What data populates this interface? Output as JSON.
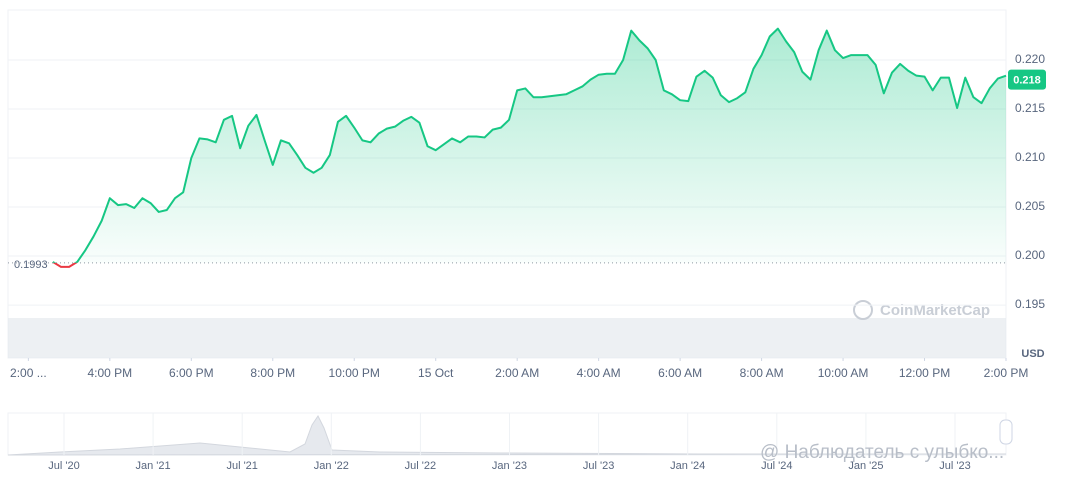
{
  "chart_data": {
    "type": "line",
    "x": [
      0.6,
      0.8,
      1.0,
      1.2,
      1.4,
      1.6,
      1.8,
      2.0,
      2.2,
      2.4,
      2.6,
      2.8,
      3.0,
      3.2,
      3.4,
      3.6,
      3.8,
      4.0,
      4.2,
      4.4,
      4.6,
      4.8,
      5.0,
      5.2,
      5.4,
      5.6,
      5.8,
      6.0,
      6.2,
      6.4,
      6.6,
      6.8,
      7.0,
      7.2,
      7.4,
      7.6,
      7.8,
      8.0,
      8.2,
      8.4,
      8.6,
      8.8,
      9.0,
      9.2,
      9.4,
      9.6,
      9.8,
      10.0,
      10.2,
      10.4,
      10.6,
      10.8,
      11.0,
      11.2,
      11.4,
      11.6,
      11.8,
      12.0,
      12.2,
      12.4,
      12.6,
      12.8,
      13.0,
      13.2,
      13.4,
      13.6,
      13.8,
      14.0,
      14.2,
      14.4,
      14.6,
      14.8,
      15.0,
      15.2,
      15.4,
      15.6,
      15.8,
      16.0,
      16.2,
      16.4,
      16.6,
      16.8,
      17.0,
      17.2,
      17.4,
      17.6,
      17.8,
      18.0,
      18.2,
      18.4,
      18.6,
      18.8,
      19.0,
      19.2,
      19.4,
      19.6,
      19.8,
      20.0,
      20.2,
      20.4,
      20.6,
      20.8,
      21.0,
      21.2,
      21.4,
      21.6,
      21.8,
      22.0,
      22.2,
      22.4,
      22.6,
      22.8,
      23.0,
      23.2,
      23.4,
      23.6,
      23.8,
      24.0
    ],
    "series": [
      {
        "name": "USD",
        "color": "#16c784",
        "values": [
          0.1994,
          0.1989,
          0.1989,
          0.1994,
          0.2006,
          0.202,
          0.2036,
          0.2059,
          0.2052,
          0.2053,
          0.2049,
          0.2059,
          0.2054,
          0.2045,
          0.2047,
          0.2059,
          0.2065,
          0.21,
          0.212,
          0.2119,
          0.2116,
          0.2139,
          0.2143,
          0.211,
          0.2133,
          0.2144,
          0.2118,
          0.2093,
          0.2118,
          0.2115,
          0.2103,
          0.209,
          0.2085,
          0.209,
          0.2103,
          0.2137,
          0.2143,
          0.2131,
          0.2118,
          0.2116,
          0.2125,
          0.213,
          0.2132,
          0.2138,
          0.2142,
          0.2136,
          0.2112,
          0.2108,
          0.2114,
          0.212,
          0.2116,
          0.2122,
          0.2122,
          0.2121,
          0.2129,
          0.2131,
          0.2139,
          0.2169,
          0.2171,
          0.2162,
          0.2162,
          0.2163,
          0.2164,
          0.2165,
          0.2169,
          0.2173,
          0.218,
          0.2185,
          0.2186,
          0.2186,
          0.22,
          0.223,
          0.222,
          0.2212,
          0.22,
          0.2169,
          0.2165,
          0.2159,
          0.2158,
          0.2183,
          0.2189,
          0.2182,
          0.2164,
          0.2157,
          0.2161,
          0.2167,
          0.2191,
          0.2205,
          0.2224,
          0.2232,
          0.2219,
          0.2208,
          0.2188,
          0.218,
          0.221,
          0.223,
          0.221,
          0.2202,
          0.2205,
          0.2205,
          0.2205,
          0.2195,
          0.2166,
          0.2187,
          0.2196,
          0.2189,
          0.2184,
          0.2183,
          0.2169,
          0.2182,
          0.2182,
          0.2151,
          0.2182,
          0.2162,
          0.2156,
          0.2171,
          0.2181,
          0.2184
        ]
      }
    ],
    "below_color": "#ea3943",
    "baseline": 0.1993,
    "last_price": 0.218,
    "currency": "USD",
    "watermark": "CoinMarketCap",
    "xlim": [
      -0.5,
      24
    ],
    "xticks": [
      {
        "value": 0,
        "label": "2:00 ..."
      },
      {
        "value": 2,
        "label": "4:00 PM"
      },
      {
        "value": 4,
        "label": "6:00 PM"
      },
      {
        "value": 6,
        "label": "8:00 PM"
      },
      {
        "value": 8,
        "label": "10:00 PM"
      },
      {
        "value": 10,
        "label": "15 Oct"
      },
      {
        "value": 12,
        "label": "2:00 AM"
      },
      {
        "value": 14,
        "label": "4:00 AM"
      },
      {
        "value": 16,
        "label": "6:00 AM"
      },
      {
        "value": 18,
        "label": "8:00 AM"
      },
      {
        "value": 20,
        "label": "10:00 AM"
      },
      {
        "value": 22,
        "label": "12:00 PM"
      },
      {
        "value": 24,
        "label": "2:00 PM"
      }
    ],
    "ylim": [
      0.1896,
      0.2251
    ],
    "yticks": [
      0.195,
      {
        "value": 0.2,
        "label": "0.200"
      },
      0.205,
      {
        "value": 0.21,
        "label": "0.210"
      },
      0.215,
      {
        "value": 0.22,
        "label": "0.220"
      }
    ],
    "grid": true,
    "navigator_labels": [
      "Jul '20",
      "Jan '21",
      "Jul '21",
      "Jan '22",
      "Jul '22",
      "Jan '23",
      "Jul '23",
      "Jan '24",
      "Jul '24",
      "Jan '25",
      "Jul '23"
    ],
    "overlay_text": "@ Наблюдатель с улыбко..."
  }
}
